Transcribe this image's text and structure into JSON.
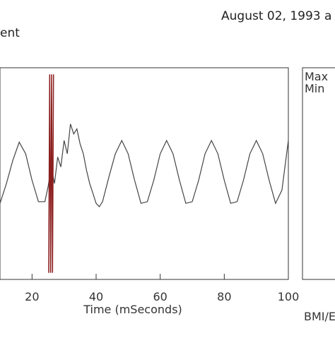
{
  "header": {
    "date_text": "August 02, 1993 a",
    "left_label": "ent"
  },
  "side_panel": {
    "max_label": "Max",
    "min_label": "Min",
    "footer_label": "BMI/E"
  },
  "chart_data": {
    "type": "line",
    "xlabel": "Time (mSeconds)",
    "ylabel": "",
    "xlim": [
      10,
      100
    ],
    "x_ticks": [
      20,
      40,
      60,
      80,
      100
    ],
    "x_tick_labels": [
      "20",
      "40",
      "60",
      "80",
      "100"
    ],
    "grid": false,
    "series": [
      {
        "color": "#444444",
        "x": [
          10,
          12,
          14,
          16,
          18,
          20,
          22,
          24,
          25,
          26,
          27,
          28,
          29,
          30,
          31,
          32,
          33,
          34,
          35,
          36,
          37,
          38,
          39,
          40,
          41,
          42,
          44,
          46,
          48,
          50,
          52,
          54,
          56,
          58,
          60,
          62,
          64,
          66,
          68,
          70,
          72,
          74,
          76,
          78,
          80,
          82,
          84,
          86,
          88,
          90,
          92,
          94,
          96,
          98,
          100
        ],
        "y": [
          -0.9,
          -0.3,
          0.4,
          0.95,
          0.6,
          -0.2,
          -0.85,
          -0.85,
          -0.4,
          0.2,
          -0.3,
          0.5,
          0.2,
          1.0,
          0.6,
          1.5,
          1.2,
          1.35,
          0.9,
          0.6,
          0.1,
          -0.3,
          -0.6,
          -0.9,
          -1.0,
          -0.85,
          -0.1,
          0.6,
          1.0,
          0.6,
          -0.2,
          -0.9,
          -0.85,
          -0.2,
          0.6,
          1.0,
          0.6,
          -0.2,
          -0.9,
          -0.85,
          -0.2,
          0.6,
          1.0,
          0.6,
          -0.2,
          -0.9,
          -0.85,
          -0.2,
          0.6,
          1.0,
          0.6,
          -0.2,
          -0.9,
          -0.5,
          1.0
        ]
      },
      {
        "color": "#8b1e1e",
        "x": [
          25.2,
          25.5,
          25.8,
          26.1,
          26.4,
          26.7
        ],
        "y": [
          -3.0,
          3.0,
          -3.0,
          3.0,
          -3.0,
          3.0
        ]
      }
    ]
  }
}
